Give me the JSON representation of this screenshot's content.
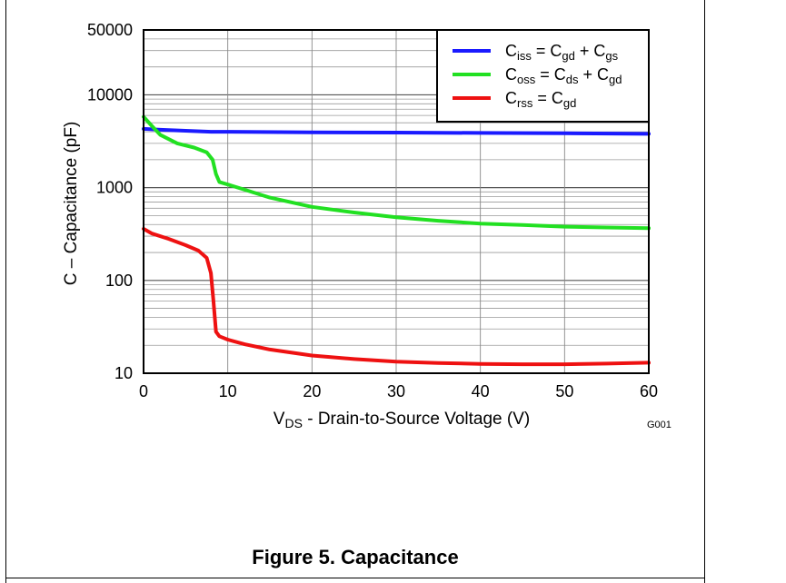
{
  "caption": "Figure 5. Capacitance",
  "figure_code": "G001",
  "chart_data": {
    "type": "line",
    "title": "",
    "xlabel": {
      "main": "V",
      "sub": "DS",
      "rest": " - Drain-to-Source Voltage (V)"
    },
    "ylabel": "C – Capacitance  (pF)",
    "xlim": [
      0,
      60
    ],
    "ylim": [
      10,
      50000
    ],
    "yscale": "log",
    "grid": true,
    "legend_position": "top-right",
    "x_ticks": [
      "0",
      "10",
      "20",
      "30",
      "40",
      "50",
      "60"
    ],
    "x_tick_values": [
      0,
      10,
      20,
      30,
      40,
      50,
      60
    ],
    "y_ticks": [
      "10",
      "100",
      "1000",
      "10000",
      "50000"
    ],
    "y_tick_values": [
      10,
      100,
      1000,
      10000,
      50000
    ],
    "series": [
      {
        "name": "Ciss = Cgd + Cgs",
        "legend": [
          {
            "t": "C"
          },
          {
            "t": "iss",
            "sub": true
          },
          {
            "t": " = C"
          },
          {
            "t": "gd",
            "sub": true
          },
          {
            "t": " + C"
          },
          {
            "t": "gs",
            "sub": true
          }
        ],
        "color": "#1a1aff",
        "points": [
          [
            0,
            4300
          ],
          [
            2,
            4200
          ],
          [
            5,
            4100
          ],
          [
            8,
            4000
          ],
          [
            10,
            4000
          ],
          [
            20,
            3950
          ],
          [
            30,
            3920
          ],
          [
            40,
            3880
          ],
          [
            50,
            3850
          ],
          [
            60,
            3800
          ]
        ]
      },
      {
        "name": "Coss = Cds + Cgd",
        "legend": [
          {
            "t": "C"
          },
          {
            "t": "oss",
            "sub": true
          },
          {
            "t": " = C"
          },
          {
            "t": "ds",
            "sub": true
          },
          {
            "t": " + C"
          },
          {
            "t": "gd",
            "sub": true
          }
        ],
        "color": "#22e022",
        "points": [
          [
            0,
            5800
          ],
          [
            1,
            4600
          ],
          [
            2,
            3700
          ],
          [
            4,
            3000
          ],
          [
            6,
            2700
          ],
          [
            7.5,
            2400
          ],
          [
            8.2,
            2000
          ],
          [
            8.6,
            1400
          ],
          [
            9,
            1150
          ],
          [
            10,
            1080
          ],
          [
            12,
            950
          ],
          [
            15,
            780
          ],
          [
            20,
            620
          ],
          [
            25,
            540
          ],
          [
            30,
            480
          ],
          [
            35,
            440
          ],
          [
            40,
            410
          ],
          [
            45,
            395
          ],
          [
            50,
            380
          ],
          [
            55,
            372
          ],
          [
            60,
            365
          ]
        ]
      },
      {
        "name": "Crss = Cgd",
        "legend": [
          {
            "t": "C"
          },
          {
            "t": "rss",
            "sub": true
          },
          {
            "t": " =  C"
          },
          {
            "t": "gd",
            "sub": true
          }
        ],
        "color": "#ee1111",
        "points": [
          [
            0,
            360
          ],
          [
            1,
            320
          ],
          [
            3,
            280
          ],
          [
            5,
            240
          ],
          [
            6.5,
            210
          ],
          [
            7.5,
            175
          ],
          [
            8,
            120
          ],
          [
            8.3,
            60
          ],
          [
            8.6,
            28
          ],
          [
            9,
            25
          ],
          [
            10,
            23
          ],
          [
            12,
            20.5
          ],
          [
            15,
            18
          ],
          [
            20,
            15.5
          ],
          [
            25,
            14.2
          ],
          [
            30,
            13.3
          ],
          [
            35,
            12.9
          ],
          [
            40,
            12.6
          ],
          [
            45,
            12.5
          ],
          [
            50,
            12.5
          ],
          [
            55,
            12.7
          ],
          [
            60,
            13.0
          ]
        ]
      }
    ]
  }
}
